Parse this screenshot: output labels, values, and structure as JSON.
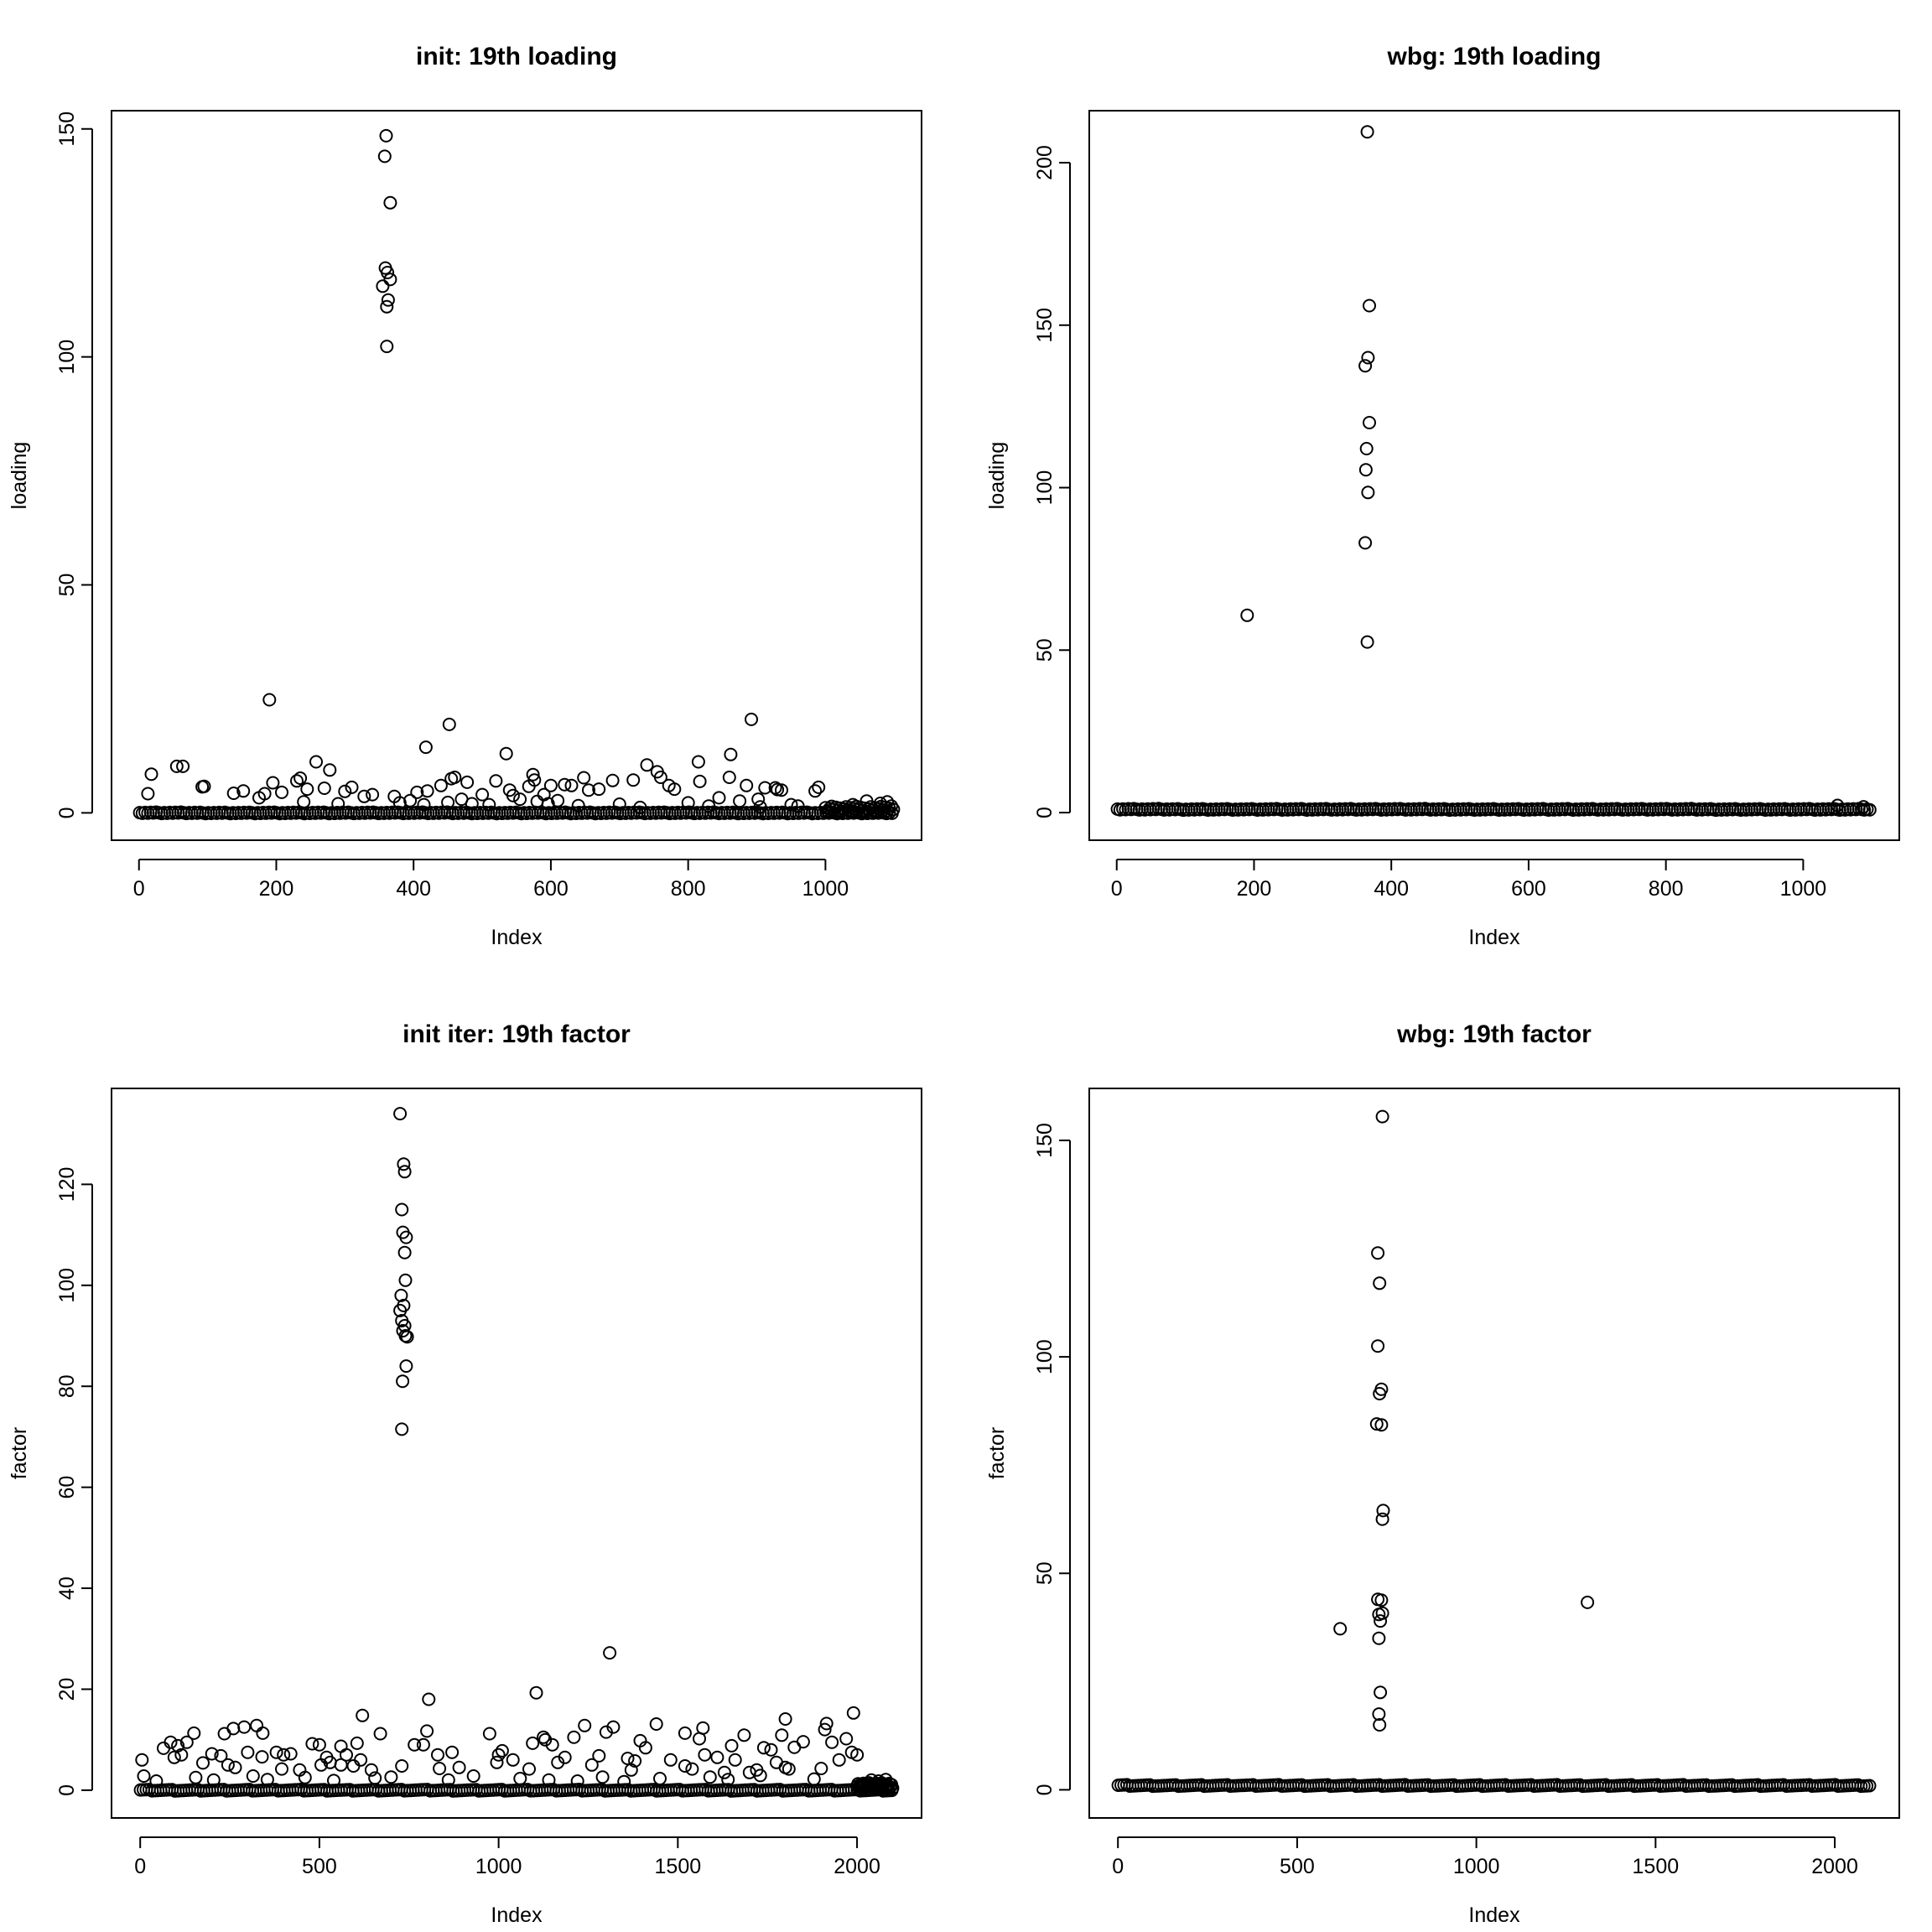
{
  "figure": {
    "background": "#ffffff",
    "point_color": "#000000",
    "marker": "open-circle"
  },
  "chart_data": [
    {
      "type": "scatter",
      "title": "init: 19th loading",
      "xlabel": "Index",
      "ylabel": "loading",
      "xlim": [
        -40,
        1140
      ],
      "ylim": [
        -6,
        154
      ],
      "xticks": [
        0,
        200,
        400,
        600,
        800,
        1000
      ],
      "yticks": [
        0,
        50,
        100,
        150
      ],
      "n_points": 1100,
      "baseline": {
        "from": 1,
        "to": 1100,
        "value": 0
      },
      "dense_tail": {
        "from": 1000,
        "to": 1100,
        "value": 1.2
      },
      "points": [
        [
          360,
          148.5
        ],
        [
          358,
          144
        ],
        [
          366,
          133.8
        ],
        [
          359,
          119.5
        ],
        [
          362,
          118.5
        ],
        [
          366,
          117
        ],
        [
          355,
          115.5
        ],
        [
          363,
          112.5
        ],
        [
          361,
          111
        ],
        [
          361,
          102.3
        ],
        [
          190,
          24.8
        ],
        [
          452,
          19.4
        ],
        [
          892,
          20.5
        ],
        [
          418,
          14.4
        ],
        [
          535,
          13
        ],
        [
          862,
          12.8
        ],
        [
          258,
          11.2
        ],
        [
          815,
          11.2
        ],
        [
          740,
          10.5
        ],
        [
          55,
          10.2
        ],
        [
          64,
          10.2
        ],
        [
          18,
          8.5
        ],
        [
          278,
          9.4
        ],
        [
          755,
          9
        ],
        [
          574,
          8.4
        ],
        [
          648,
          7.7
        ],
        [
          760,
          7.8
        ],
        [
          460,
          7.8
        ],
        [
          235,
          7.6
        ],
        [
          860,
          7.8
        ],
        [
          455,
          7.5
        ],
        [
          817,
          6.9
        ],
        [
          690,
          7.1
        ],
        [
          720,
          7.2
        ],
        [
          230,
          7
        ],
        [
          95,
          5.8
        ],
        [
          92,
          5.7
        ],
        [
          245,
          5.2
        ],
        [
          568,
          5.8
        ],
        [
          576,
          7.2
        ],
        [
          600,
          6
        ],
        [
          620,
          6.2
        ],
        [
          990,
          5.6
        ],
        [
          985,
          4.8
        ],
        [
          927,
          5.5
        ],
        [
          930,
          5.1
        ],
        [
          270,
          5.4
        ],
        [
          195,
          6.6
        ],
        [
          310,
          5.6
        ],
        [
          340,
          4
        ],
        [
          405,
          4.5
        ],
        [
          420,
          4.8
        ],
        [
          440,
          6
        ],
        [
          478,
          6.7
        ],
        [
          500,
          4
        ],
        [
          520,
          7
        ],
        [
          540,
          5
        ],
        [
          545,
          3.8
        ],
        [
          590,
          4
        ],
        [
          630,
          6
        ],
        [
          655,
          5
        ],
        [
          670,
          5.2
        ],
        [
          780,
          5.2
        ],
        [
          772,
          6
        ],
        [
          885,
          6
        ],
        [
          902,
          3
        ],
        [
          912,
          5.5
        ],
        [
          936,
          5
        ],
        [
          13,
          4.2
        ],
        [
          138,
          4.3
        ],
        [
          152,
          4.8
        ],
        [
          175,
          3.3
        ],
        [
          183,
          4.2
        ],
        [
          208,
          4.5
        ],
        [
          240,
          2.4
        ],
        [
          300,
          4.7
        ],
        [
          328,
          3.6
        ],
        [
          372,
          3.6
        ],
        [
          290,
          2
        ],
        [
          380,
          2.2
        ],
        [
          395,
          2.7
        ],
        [
          415,
          1.8
        ],
        [
          450,
          2.3
        ],
        [
          470,
          3
        ],
        [
          485,
          2
        ],
        [
          510,
          1.8
        ],
        [
          555,
          3
        ],
        [
          580,
          2.5
        ],
        [
          596,
          2
        ],
        [
          610,
          2.7
        ],
        [
          640,
          1.6
        ],
        [
          700,
          1.9
        ],
        [
          730,
          1.2
        ],
        [
          800,
          2.2
        ],
        [
          830,
          1.5
        ],
        [
          845,
          3.3
        ],
        [
          875,
          2.6
        ],
        [
          905,
          1.3
        ],
        [
          950,
          1.8
        ],
        [
          960,
          1.5
        ],
        [
          1040,
          1.8
        ],
        [
          1060,
          2.6
        ],
        [
          1080,
          2.1
        ],
        [
          1090,
          2.4
        ]
      ]
    },
    {
      "type": "scatter",
      "title": "wbg: 19th loading",
      "xlabel": "Index",
      "ylabel": "loading",
      "xlim": [
        -40,
        1140
      ],
      "ylim": [
        -8.5,
        216
      ],
      "xticks": [
        0,
        200,
        400,
        600,
        800,
        1000
      ],
      "yticks": [
        0,
        50,
        100,
        150,
        200
      ],
      "n_points": 1100,
      "baseline": {
        "from": 1,
        "to": 1100,
        "value": 1
      },
      "points": [
        [
          365,
          209.5
        ],
        [
          368,
          156
        ],
        [
          366,
          140
        ],
        [
          362,
          137.5
        ],
        [
          368,
          120
        ],
        [
          364,
          112
        ],
        [
          363,
          105.5
        ],
        [
          366,
          98.5
        ],
        [
          362,
          83
        ],
        [
          365,
          52.5
        ],
        [
          190,
          60.7
        ],
        [
          1050,
          2.2
        ],
        [
          1088,
          1.8
        ]
      ]
    },
    {
      "type": "scatter",
      "title": "init iter: 19th factor",
      "xlabel": "Index",
      "ylabel": "factor",
      "xlim": [
        -80,
        2180
      ],
      "ylim": [
        -5.5,
        139
      ],
      "xticks": [
        0,
        500,
        1000,
        1500,
        2000
      ],
      "yticks": [
        0,
        20,
        40,
        60,
        80,
        100,
        120
      ],
      "n_points": 2100,
      "baseline": {
        "from": 1,
        "to": 2100,
        "value": 0
      },
      "dense_tail": {
        "from": 2000,
        "to": 2100,
        "value": 1.2
      },
      "points": [
        [
          725,
          134
        ],
        [
          735,
          124
        ],
        [
          738,
          122.5
        ],
        [
          730,
          115
        ],
        [
          733,
          110.5
        ],
        [
          742,
          109.5
        ],
        [
          738,
          106.5
        ],
        [
          740,
          101
        ],
        [
          728,
          98
        ],
        [
          735,
          96
        ],
        [
          725,
          95
        ],
        [
          730,
          93
        ],
        [
          738,
          92
        ],
        [
          733,
          91
        ],
        [
          740,
          90
        ],
        [
          745,
          89.8
        ],
        [
          742,
          84
        ],
        [
          732,
          81
        ],
        [
          730,
          71.5
        ],
        [
          1310,
          27.2
        ],
        [
          805,
          18
        ],
        [
          1105,
          19.3
        ],
        [
          1990,
          15.3
        ],
        [
          620,
          14.8
        ],
        [
          1800,
          14.1
        ],
        [
          1915,
          13.2
        ],
        [
          325,
          12.8
        ],
        [
          290,
          12.5
        ],
        [
          260,
          12.2
        ],
        [
          1320,
          12.5
        ],
        [
          1240,
          12.8
        ],
        [
          1440,
          13.1
        ],
        [
          1570,
          12.3
        ],
        [
          1910,
          12
        ],
        [
          150,
          11.3
        ],
        [
          235,
          11.2
        ],
        [
          342,
          11.3
        ],
        [
          670,
          11.2
        ],
        [
          800,
          11.7
        ],
        [
          975,
          11.2
        ],
        [
          1095,
          9.3
        ],
        [
          1125,
          10.5
        ],
        [
          1300,
          11.5
        ],
        [
          1520,
          11.3
        ],
        [
          1560,
          10.2
        ],
        [
          1685,
          10.9
        ],
        [
          1790,
          10.9
        ],
        [
          1850,
          9.6
        ],
        [
          1970,
          10.2
        ],
        [
          65,
          8.3
        ],
        [
          85,
          9.5
        ],
        [
          105,
          8.8
        ],
        [
          130,
          9.5
        ],
        [
          480,
          9.2
        ],
        [
          500,
          9
        ],
        [
          560,
          8.7
        ],
        [
          605,
          9.3
        ],
        [
          765,
          9
        ],
        [
          790,
          9
        ],
        [
          1010,
          7.8
        ],
        [
          1130,
          10
        ],
        [
          1150,
          9
        ],
        [
          1210,
          10.5
        ],
        [
          1395,
          9.8
        ],
        [
          1410,
          8.4
        ],
        [
          1650,
          8.8
        ],
        [
          1740,
          8.4
        ],
        [
          1825,
          8.5
        ],
        [
          1930,
          9.5
        ],
        [
          5,
          6
        ],
        [
          95,
          6.5
        ],
        [
          115,
          7
        ],
        [
          200,
          7.2
        ],
        [
          225,
          6.8
        ],
        [
          300,
          7.5
        ],
        [
          340,
          6.6
        ],
        [
          380,
          7.5
        ],
        [
          400,
          7
        ],
        [
          420,
          7.2
        ],
        [
          520,
          6.5
        ],
        [
          530,
          5.5
        ],
        [
          575,
          7
        ],
        [
          615,
          6
        ],
        [
          830,
          7
        ],
        [
          870,
          7.5
        ],
        [
          1000,
          7
        ],
        [
          1040,
          6
        ],
        [
          1185,
          6.5
        ],
        [
          1280,
          6.8
        ],
        [
          1360,
          6.3
        ],
        [
          1380,
          5.8
        ],
        [
          1480,
          6
        ],
        [
          1520,
          4.8
        ],
        [
          1575,
          7
        ],
        [
          1610,
          6.5
        ],
        [
          1660,
          6
        ],
        [
          1700,
          3.5
        ],
        [
          1720,
          4
        ],
        [
          1760,
          8
        ],
        [
          1800,
          4.5
        ],
        [
          1950,
          6
        ],
        [
          1985,
          7.5
        ],
        [
          2000,
          7
        ],
        [
          175,
          5.4
        ],
        [
          245,
          5
        ],
        [
          265,
          4.5
        ],
        [
          395,
          4.2
        ],
        [
          445,
          4
        ],
        [
          505,
          5
        ],
        [
          560,
          5
        ],
        [
          595,
          4.8
        ],
        [
          645,
          4
        ],
        [
          730,
          4.8
        ],
        [
          835,
          4.3
        ],
        [
          890,
          4.5
        ],
        [
          995,
          5.5
        ],
        [
          1085,
          4.2
        ],
        [
          1165,
          5.5
        ],
        [
          1260,
          5
        ],
        [
          1370,
          4
        ],
        [
          1540,
          4.2
        ],
        [
          1630,
          3.5
        ],
        [
          1775,
          5.5
        ],
        [
          1810,
          4.2
        ],
        [
          1900,
          4.3
        ],
        [
          10,
          2.8
        ],
        [
          45,
          1.8
        ],
        [
          155,
          2.5
        ],
        [
          205,
          2
        ],
        [
          315,
          2.8
        ],
        [
          355,
          2.1
        ],
        [
          460,
          2.5
        ],
        [
          540,
          1.9
        ],
        [
          655,
          2.4
        ],
        [
          700,
          2.6
        ],
        [
          860,
          2
        ],
        [
          930,
          2.8
        ],
        [
          1060,
          2.3
        ],
        [
          1140,
          2
        ],
        [
          1220,
          1.8
        ],
        [
          1290,
          2.6
        ],
        [
          1350,
          1.7
        ],
        [
          1450,
          2.3
        ],
        [
          1590,
          2.6
        ],
        [
          1640,
          2.1
        ],
        [
          1730,
          2.9
        ],
        [
          1880,
          2.2
        ],
        [
          2040,
          2
        ],
        [
          2060,
          1.8
        ],
        [
          2080,
          2.1
        ]
      ]
    },
    {
      "type": "scatter",
      "title": "wbg: 19th factor",
      "xlabel": "Index",
      "ylabel": "factor",
      "xlim": [
        -80,
        2180
      ],
      "ylim": [
        -6.5,
        162
      ],
      "xticks": [
        0,
        500,
        1000,
        1500,
        2000
      ],
      "yticks": [
        0,
        50,
        100,
        150
      ],
      "n_points": 2100,
      "baseline": {
        "from": 1,
        "to": 2100,
        "value": 1
      },
      "points": [
        [
          738,
          155.5
        ],
        [
          725,
          124
        ],
        [
          730,
          117
        ],
        [
          725,
          102.5
        ],
        [
          735,
          92.5
        ],
        [
          730,
          91.5
        ],
        [
          722,
          84.5
        ],
        [
          735,
          84.3
        ],
        [
          740,
          64.5
        ],
        [
          738,
          62.5
        ],
        [
          725,
          44
        ],
        [
          735,
          43.8
        ],
        [
          738,
          40.8
        ],
        [
          728,
          40.5
        ],
        [
          732,
          39
        ],
        [
          728,
          35
        ],
        [
          732,
          22.5
        ],
        [
          728,
          17.5
        ],
        [
          730,
          15
        ],
        [
          620,
          37.2
        ],
        [
          1310,
          43.3
        ]
      ]
    }
  ]
}
